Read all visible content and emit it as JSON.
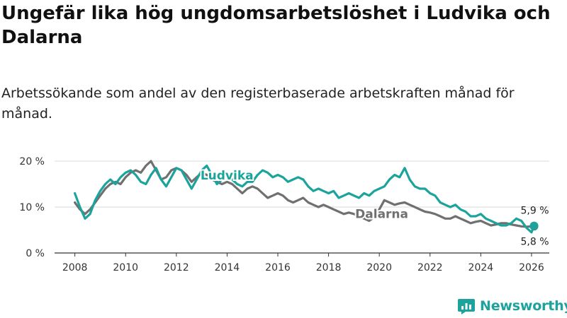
{
  "header": {
    "title": "Ungefär lika hög ungdomsarbetslöshet i Ludvika och Dalarna",
    "subtitle": "Arbetssökande som andel av den registerbaserade arbetskraften månad för månad."
  },
  "brand": {
    "name": "Newsworthy",
    "color": "#1ba39c"
  },
  "chart_data": {
    "type": "line",
    "title": "Ungefär lika hög ungdomsarbetslöshet i Ludvika och Dalarna",
    "subtitle": "Arbetssökande som andel av den registerbaserade arbetskraften månad för månad.",
    "xlabel": "",
    "ylabel": "",
    "xlim": [
      2007.2,
      2026.7
    ],
    "ylim": [
      0,
      20
    ],
    "yticks": [
      0,
      10,
      20
    ],
    "ytick_labels": [
      "0 %",
      "10 %",
      "20 %"
    ],
    "xticks": [
      2008,
      2010,
      2012,
      2014,
      2016,
      2018,
      2020,
      2022,
      2024,
      2026
    ],
    "xtick_labels": [
      "2008",
      "2010",
      "2012",
      "2014",
      "2016",
      "2018",
      "2020",
      "2022",
      "2024",
      "2026"
    ],
    "grid": true,
    "series": [
      {
        "name": "Dalarna",
        "label": "Dalarna",
        "color": "#707070",
        "end_label": "5,8 %",
        "x": [
          2008.0,
          2008.2,
          2008.4,
          2008.6,
          2008.8,
          2009.0,
          2009.2,
          2009.4,
          2009.6,
          2009.8,
          2010.0,
          2010.2,
          2010.4,
          2010.6,
          2010.8,
          2011.0,
          2011.2,
          2011.4,
          2011.6,
          2011.8,
          2012.0,
          2012.2,
          2012.4,
          2012.6,
          2012.8,
          2013.0,
          2013.2,
          2013.4,
          2013.6,
          2013.8,
          2014.0,
          2014.2,
          2014.4,
          2014.6,
          2014.8,
          2015.0,
          2015.2,
          2015.4,
          2015.6,
          2015.8,
          2016.0,
          2016.2,
          2016.4,
          2016.6,
          2016.8,
          2017.0,
          2017.2,
          2017.4,
          2017.6,
          2017.8,
          2018.0,
          2018.2,
          2018.4,
          2018.6,
          2018.8,
          2019.0,
          2019.2,
          2019.4,
          2019.6,
          2019.8,
          2020.0,
          2020.2,
          2020.4,
          2020.6,
          2020.8,
          2021.0,
          2021.2,
          2021.4,
          2021.6,
          2021.8,
          2022.0,
          2022.2,
          2022.4,
          2022.6,
          2022.8,
          2023.0,
          2023.2,
          2023.4,
          2023.6,
          2023.8,
          2024.0,
          2024.2,
          2024.4,
          2024.6,
          2024.8,
          2025.0,
          2025.2,
          2025.4,
          2025.6,
          2025.8,
          2026.0,
          2026.1
        ],
        "y": [
          11.0,
          9.5,
          8.5,
          9.5,
          11.0,
          12.5,
          14.0,
          15.0,
          15.5,
          15.0,
          16.5,
          17.5,
          18.0,
          17.5,
          19.0,
          20.0,
          18.0,
          16.0,
          16.5,
          18.0,
          18.5,
          18.0,
          17.0,
          15.5,
          16.5,
          17.5,
          17.0,
          16.0,
          15.5,
          15.0,
          15.5,
          15.0,
          14.0,
          13.0,
          14.0,
          14.5,
          14.0,
          13.0,
          12.0,
          12.5,
          13.0,
          12.5,
          11.5,
          11.0,
          11.5,
          12.0,
          11.0,
          10.5,
          10.0,
          10.5,
          10.0,
          9.5,
          9.0,
          8.5,
          8.8,
          8.5,
          8.0,
          7.5,
          7.0,
          7.8,
          9.5,
          11.5,
          11.0,
          10.5,
          10.8,
          11.0,
          10.5,
          10.0,
          9.5,
          9.0,
          8.8,
          8.5,
          8.0,
          7.5,
          7.5,
          8.0,
          7.5,
          7.0,
          6.5,
          6.8,
          7.0,
          6.5,
          6.0,
          6.2,
          6.5,
          6.5,
          6.2,
          6.0,
          5.8,
          5.7,
          5.8,
          5.8
        ]
      },
      {
        "name": "Ludvika",
        "label": "Ludvika",
        "color": "#1ba39c",
        "end_label": "5,9 %",
        "x": [
          2008.0,
          2008.2,
          2008.4,
          2008.6,
          2008.8,
          2009.0,
          2009.2,
          2009.4,
          2009.6,
          2009.8,
          2010.0,
          2010.2,
          2010.4,
          2010.6,
          2010.8,
          2011.0,
          2011.2,
          2011.4,
          2011.6,
          2011.8,
          2012.0,
          2012.2,
          2012.4,
          2012.6,
          2012.8,
          2013.0,
          2013.2,
          2013.4,
          2013.6,
          2013.8,
          2014.0,
          2014.2,
          2014.4,
          2014.6,
          2014.8,
          2015.0,
          2015.2,
          2015.4,
          2015.6,
          2015.8,
          2016.0,
          2016.2,
          2016.4,
          2016.6,
          2016.8,
          2017.0,
          2017.2,
          2017.4,
          2017.6,
          2017.8,
          2018.0,
          2018.2,
          2018.4,
          2018.6,
          2018.8,
          2019.0,
          2019.2,
          2019.4,
          2019.6,
          2019.8,
          2020.0,
          2020.2,
          2020.4,
          2020.6,
          2020.8,
          2021.0,
          2021.2,
          2021.4,
          2021.6,
          2021.8,
          2022.0,
          2022.2,
          2022.4,
          2022.6,
          2022.8,
          2023.0,
          2023.2,
          2023.4,
          2023.6,
          2023.8,
          2024.0,
          2024.2,
          2024.4,
          2024.6,
          2024.8,
          2025.0,
          2025.2,
          2025.4,
          2025.6,
          2025.8,
          2026.0,
          2026.1
        ],
        "y": [
          13.0,
          10.0,
          7.5,
          8.5,
          11.5,
          13.5,
          15.0,
          16.0,
          15.0,
          16.5,
          17.5,
          18.0,
          17.0,
          15.5,
          15.0,
          17.0,
          18.5,
          16.0,
          14.5,
          16.5,
          18.5,
          18.0,
          16.0,
          14.0,
          16.0,
          18.0,
          19.0,
          17.0,
          15.0,
          16.0,
          17.0,
          16.0,
          15.0,
          14.5,
          15.5,
          15.5,
          17.0,
          18.0,
          17.5,
          16.5,
          17.0,
          16.5,
          15.5,
          16.0,
          16.5,
          16.0,
          14.5,
          13.5,
          14.0,
          13.5,
          13.0,
          13.5,
          12.0,
          12.5,
          13.0,
          12.5,
          12.0,
          13.0,
          12.5,
          13.5,
          14.0,
          14.5,
          16.0,
          17.0,
          16.5,
          18.5,
          16.0,
          14.5,
          14.0,
          14.0,
          13.0,
          12.5,
          11.0,
          10.5,
          10.0,
          10.5,
          9.5,
          9.0,
          8.0,
          8.0,
          8.5,
          7.5,
          7.0,
          6.5,
          6.0,
          6.0,
          6.5,
          7.5,
          7.0,
          5.5,
          4.5,
          5.9
        ]
      }
    ]
  }
}
